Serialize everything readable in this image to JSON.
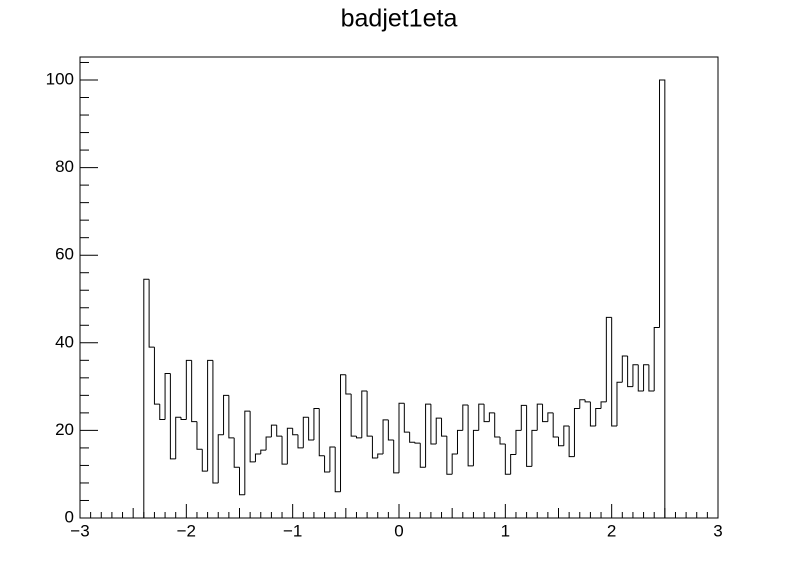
{
  "chart_data": {
    "type": "histogram",
    "title": "badjet1eta",
    "color": "#000000",
    "bins": [
      -2.4,
      -2.35,
      -2.3,
      -2.25,
      -2.2,
      -2.15,
      -2.1,
      -2.05,
      -2,
      -1.95,
      -1.9,
      -1.85,
      -1.8,
      -1.75,
      -1.7,
      -1.65,
      -1.6,
      -1.55,
      -1.5,
      -1.45,
      -1.4,
      -1.35,
      -1.3,
      -1.25,
      -1.2,
      -1.15,
      -1.1,
      -1.05,
      -1,
      -0.95,
      -0.9,
      -0.85,
      -0.8,
      -0.75,
      -0.7,
      -0.65,
      -0.6,
      -0.55,
      -0.5,
      -0.45,
      -0.4,
      -0.35,
      -0.3,
      -0.25,
      -0.2,
      -0.15,
      -0.1,
      -0.05,
      0,
      0.05,
      0.1,
      0.15,
      0.2,
      0.25,
      0.3,
      0.35,
      0.4,
      0.45,
      0.5,
      0.55,
      0.6,
      0.65,
      0.7,
      0.75,
      0.8,
      0.85,
      0.9,
      0.95,
      1,
      1.05,
      1.1,
      1.15,
      1.2,
      1.25,
      1.3,
      1.35,
      1.4,
      1.45,
      1.5,
      1.55,
      1.6,
      1.65,
      1.7,
      1.75,
      1.8,
      1.85,
      1.9,
      1.95,
      2,
      2.05,
      2.1,
      2.15,
      2.2,
      2.25,
      2.3,
      2.35,
      2.4,
      2.45,
      2.5
    ],
    "values": [
      54.5,
      39,
      26,
      22.5,
      33,
      13.5,
      23,
      22.5,
      36,
      22,
      15.7,
      10.7,
      36,
      8,
      19,
      28,
      18.3,
      11.6,
      5.3,
      24.4,
      12.8,
      14.6,
      15.5,
      18.5,
      21.2,
      18.7,
      12.3,
      20.5,
      19,
      16,
      23,
      17.8,
      25,
      14.2,
      10.5,
      16.2,
      6,
      32.7,
      28.3,
      18.7,
      18.3,
      29,
      18.7,
      13.7,
      14.6,
      22.4,
      17.8,
      10.3,
      26.2,
      19.6,
      17.3,
      17.1,
      11.6,
      26,
      16.9,
      22.8,
      18.7,
      10,
      14.6,
      20,
      25.8,
      11.9,
      20,
      26,
      22,
      24,
      18.5,
      16.9,
      10,
      14.5,
      20,
      25.7,
      11.8,
      20,
      26,
      22,
      24,
      18.5,
      16.5,
      21,
      14,
      25,
      27,
      26.5,
      21,
      25,
      26.5,
      45.8,
      21,
      31,
      37,
      30,
      35,
      29,
      35,
      29,
      43.5,
      100
    ],
    "xlim": [
      -3,
      3
    ],
    "xticks": [
      {
        "value": -3,
        "label": "−3"
      },
      {
        "value": -2,
        "label": "−2"
      },
      {
        "value": -1,
        "label": "−1"
      },
      0,
      1,
      2,
      3
    ],
    "ylim": [
      0,
      105.25
    ],
    "yticks": [
      0,
      20,
      40,
      60,
      80,
      100
    ]
  }
}
